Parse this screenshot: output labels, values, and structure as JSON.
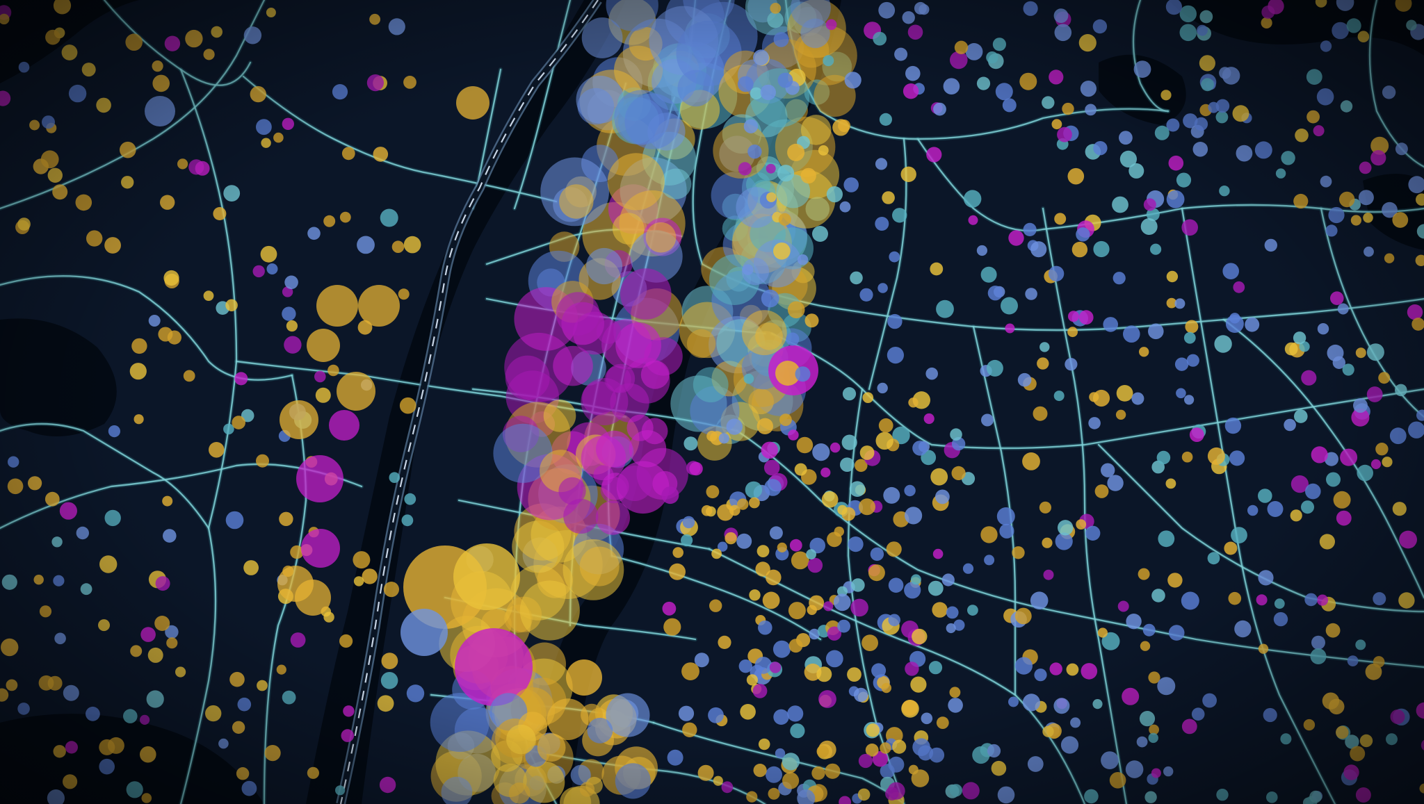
{
  "map": {
    "style": "dark",
    "colors": {
      "background": "#06101d",
      "land": "#0b1628",
      "water": "#030a14",
      "road": "#7fd0d6",
      "road_glow": "#2b6f7a",
      "highway_dash": "#c9d6e6"
    },
    "labels": []
  },
  "layers": [
    {
      "name": "road-network",
      "kind": "line",
      "color": "#7fd0d6"
    },
    {
      "name": "points",
      "kind": "bubble"
    }
  ],
  "point_palette": [
    "#e5b233",
    "#d3a12a",
    "#6f93e0",
    "#5a7fd6",
    "#6fc3cf",
    "#57b0c0",
    "#c41fc9",
    "#a51ab3",
    "#eac23a"
  ],
  "legend": {
    "visible": false
  }
}
